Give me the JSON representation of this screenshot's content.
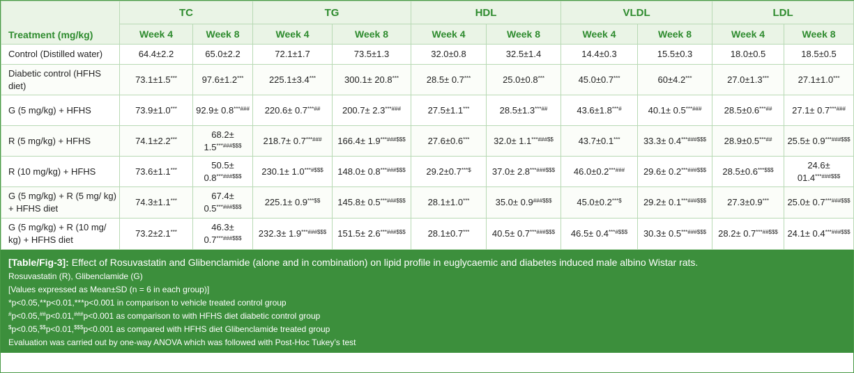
{
  "table": {
    "treatment_header": "Treatment (mg/kg)",
    "groups": [
      "TC",
      "TG",
      "HDL",
      "VLDL",
      "LDL"
    ],
    "week_labels": [
      "Week 4",
      "Week 8"
    ],
    "rows": [
      {
        "treatment": "Control (Distilled water)",
        "cells": [
          [
            "64.4±2.2",
            ""
          ],
          [
            "65.0±2.2",
            ""
          ],
          [
            "72.1±1.7",
            ""
          ],
          [
            "73.5±1.3",
            ""
          ],
          [
            "32.0±0.8",
            ""
          ],
          [
            "32.5±1.4",
            ""
          ],
          [
            "14.4±0.3",
            ""
          ],
          [
            "15.5±0.3",
            ""
          ],
          [
            "18.0±0.5",
            ""
          ],
          [
            "18.5±0.5",
            ""
          ]
        ]
      },
      {
        "treatment": "Diabetic control (HFHS diet)",
        "cells": [
          [
            "73.1±1.5",
            "***"
          ],
          [
            "97.6±1.2",
            "***"
          ],
          [
            "225.1±3.4",
            "***"
          ],
          [
            "300.1± 20.8",
            "***"
          ],
          [
            "28.5± 0.7",
            "***"
          ],
          [
            "25.0±0.8",
            "***"
          ],
          [
            "45.0±0.7",
            "***"
          ],
          [
            "60±4.2",
            "***"
          ],
          [
            "27.0±1.3",
            "***"
          ],
          [
            "27.1±1.0",
            "***"
          ]
        ]
      },
      {
        "treatment": "G (5 mg/kg) + HFHS",
        "cells": [
          [
            "73.9±1.0",
            "***"
          ],
          [
            "92.9± 0.8",
            "***###"
          ],
          [
            "220.6± 0.7",
            "***##"
          ],
          [
            "200.7± 2.3",
            "***###"
          ],
          [
            "27.5±1.1",
            "***"
          ],
          [
            "28.5±1.3",
            "***##"
          ],
          [
            "43.6±1.8",
            "***#"
          ],
          [
            "40.1± 0.5",
            "***###"
          ],
          [
            "28.5±0.6",
            "***##"
          ],
          [
            "27.1± 0.7",
            "***###"
          ]
        ]
      },
      {
        "treatment": "R (5 mg/kg) + HFHS",
        "cells": [
          [
            "74.1±2.2",
            "***"
          ],
          [
            "68.2± 1.5",
            "***###$$$"
          ],
          [
            "218.7± 0.7",
            "***###"
          ],
          [
            "166.4± 1.9",
            "***###$$$"
          ],
          [
            "27.6±0.6",
            "***"
          ],
          [
            "32.0± 1.1",
            "***###$$"
          ],
          [
            "43.7±0.1",
            "***"
          ],
          [
            "33.3± 0.4",
            "***###$$$"
          ],
          [
            "28.9±0.5",
            "***##"
          ],
          [
            "25.5± 0.9",
            "***###$$$"
          ]
        ]
      },
      {
        "treatment": "R (10 mg/kg) + HFHS",
        "cells": [
          [
            "73.6±1.1",
            "***"
          ],
          [
            "50.5± 0.8",
            "***###$$$"
          ],
          [
            "230.1± 1.0",
            "***#$$$"
          ],
          [
            "148.0± 0.8",
            "***###$$$"
          ],
          [
            "29.2±0.7",
            "***$"
          ],
          [
            "37.0± 2.8",
            "***###$$$"
          ],
          [
            "46.0±0.2",
            "***###"
          ],
          [
            "29.6± 0.2",
            "***###$$$"
          ],
          [
            "28.5±0.6",
            "***$$$"
          ],
          [
            "24.6± 01.4",
            "***###$$$"
          ]
        ]
      },
      {
        "treatment": "G (5 mg/kg) + R (5 mg/ kg) + HFHS diet",
        "cells": [
          [
            "74.3±1.1",
            "***"
          ],
          [
            "67.4± 0.5",
            "***###$$$"
          ],
          [
            "225.1± 0.9",
            "***$$"
          ],
          [
            "145.8± 0.5",
            "***###$$$"
          ],
          [
            "28.1±1.0",
            "***"
          ],
          [
            "35.0± 0.9",
            "###$$$"
          ],
          [
            "45.0±0.2",
            "***$"
          ],
          [
            "29.2± 0.1",
            "***###$$$"
          ],
          [
            "27.3±0.9",
            "***"
          ],
          [
            "25.0± 0.7",
            "***###$$$"
          ]
        ]
      },
      {
        "treatment": "G (5 mg/kg) + R (10 mg/ kg) + HFHS diet",
        "cells": [
          [
            "73.2±2.1",
            "***"
          ],
          [
            "46.3± 0.7",
            "***###$$$"
          ],
          [
            "232.3± 1.9",
            "***###$$$"
          ],
          [
            "151.5± 2.6",
            "***###$$$"
          ],
          [
            "28.1±0.7",
            "***"
          ],
          [
            "40.5± 0.7",
            "***###$$$"
          ],
          [
            "46.5± 0.4",
            "***#$$$"
          ],
          [
            "30.3± 0.5",
            "***###$$$"
          ],
          [
            "28.2± 0.7",
            "***##$$$"
          ],
          [
            "24.1± 0.4",
            "***###$$$"
          ]
        ]
      }
    ]
  },
  "caption": {
    "label": "[Table/Fig-3]:",
    "title": "Effect of Rosuvastatin and Glibenclamide (alone and in combination) on lipid profile in euglycaemic and diabetes induced male albino Wistar rats.",
    "abbrev": "Rosuvastatin (R), Glibenclamide (G)",
    "values_note": "[Values expressed as Mean±SD (n = 6 in each group)]",
    "sig1": "*p<0.05,**p<0.01,***p<0.001 in comparison to vehicle treated control group",
    "sig2": {
      "m1": "#",
      "t1": "p<0.05,",
      "m2": "##",
      "t2": "p<0.01,",
      "m3": "###",
      "t3": "p<0.001 as comparison to with HFHS diet diabetic control group"
    },
    "sig3": {
      "m1": "$",
      "t1": "p<0.05,",
      "m2": "$$",
      "t2": "p<0.01,",
      "m3": "$$$",
      "t3": "p<0.001 as compared with HFHS diet Glibenclamide treated group"
    },
    "evaluation": "Evaluation was carried out by one-way ANOVA which was followed with Post-Hoc Tukey’s test"
  }
}
